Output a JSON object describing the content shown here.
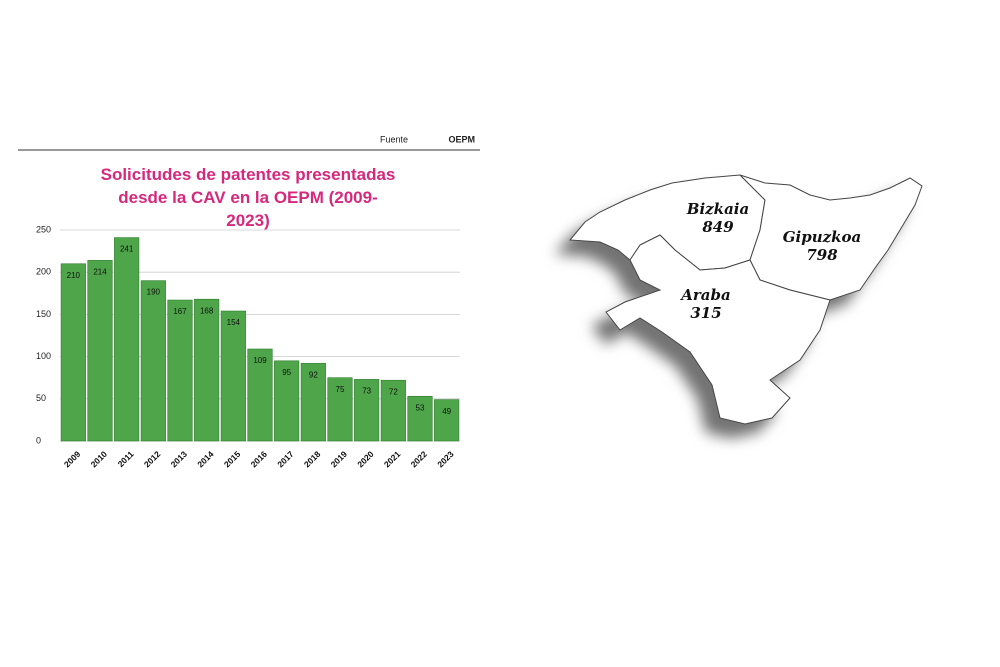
{
  "chart_data": [
    {
      "type": "bar",
      "source": {
        "label": "Fuente",
        "name": "OEPM"
      },
      "title": "Solicitudes de patentes presentadas desde la CAV en la OEPM (2009-2023)",
      "categories": [
        "2009",
        "2010",
        "2011",
        "2012",
        "2013",
        "2014",
        "2015",
        "2016",
        "2017",
        "2018",
        "2019",
        "2020",
        "2021",
        "2022",
        "2023"
      ],
      "values": [
        210,
        214,
        241,
        190,
        167,
        168,
        154,
        109,
        95,
        92,
        75,
        73,
        72,
        53,
        49
      ],
      "color": "#4ea54a",
      "ylim": [
        0,
        250
      ],
      "yticks": [
        0,
        50,
        100,
        150,
        200,
        250
      ],
      "grid": true
    },
    {
      "type": "map",
      "categories": [
        "Bizkaia",
        "Gipuzkoa",
        "Araba"
      ],
      "values": [
        849,
        798,
        315
      ]
    }
  ]
}
